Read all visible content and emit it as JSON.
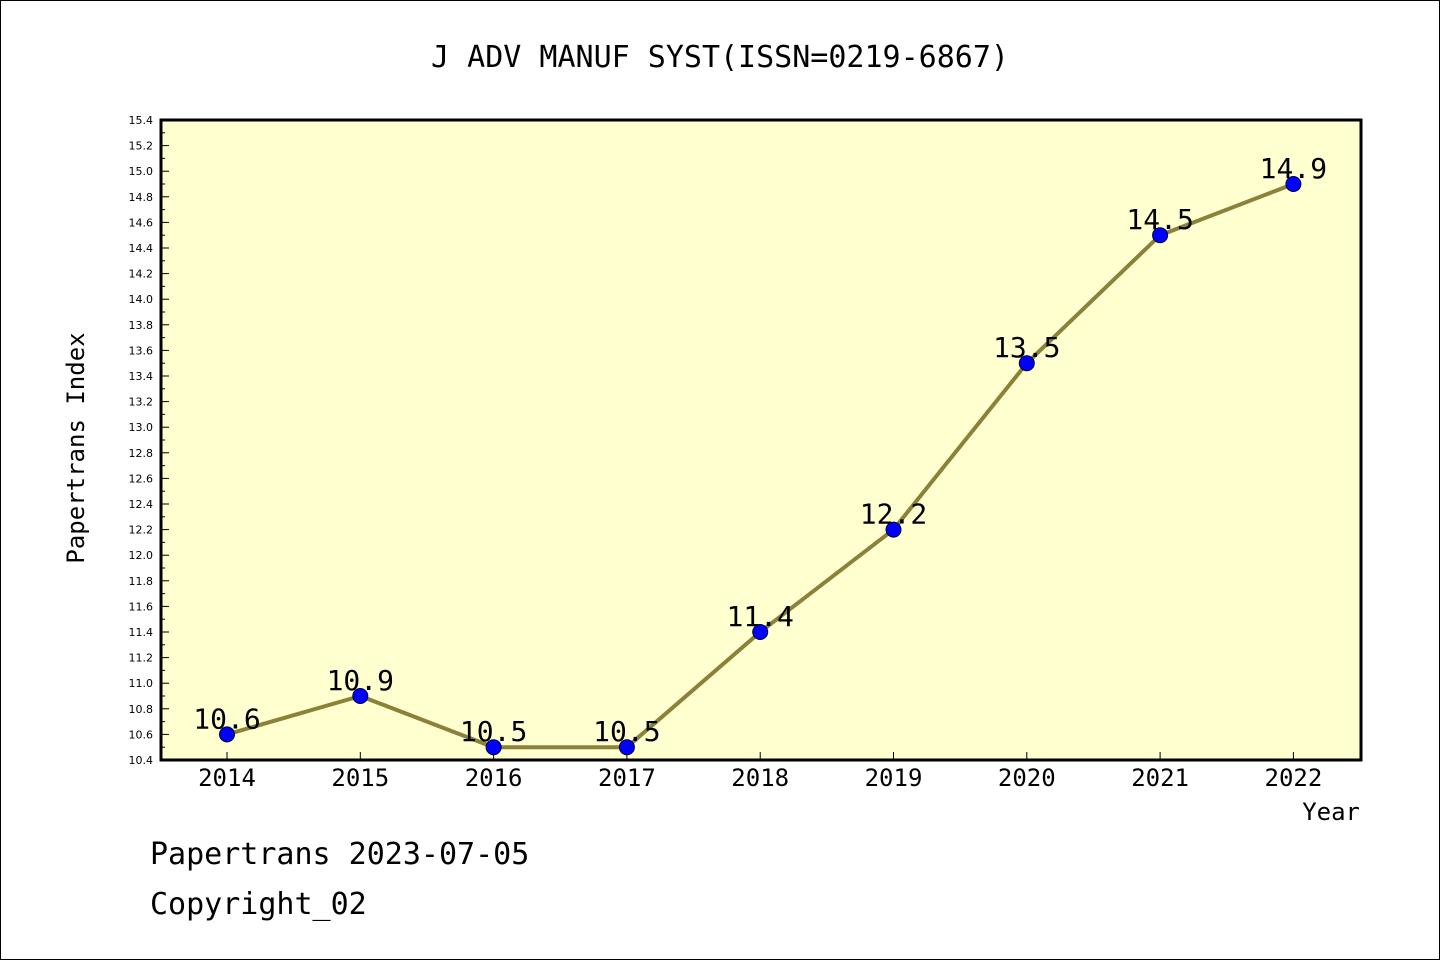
{
  "chart_data": {
    "type": "line",
    "title": "J ADV MANUF SYST(ISSN=0219-6867)",
    "xlabel": "Year",
    "ylabel": "Papertrans Index",
    "categories": [
      "2014",
      "2015",
      "2016",
      "2017",
      "2018",
      "2019",
      "2020",
      "2021",
      "2022"
    ],
    "values": [
      10.6,
      10.9,
      10.5,
      10.5,
      11.4,
      12.2,
      13.5,
      14.5,
      14.9
    ],
    "data_labels": [
      "10.6",
      "10.9",
      "10.5",
      "10.5",
      "11.4",
      "12.2",
      "13.5",
      "14.5",
      "14.9"
    ],
    "ylim": [
      10.4,
      15.4
    ],
    "y_ticks": [
      "10.4",
      "10.6",
      "10.8",
      "11.0",
      "11.2",
      "11.4",
      "11.6",
      "11.8",
      "12.0",
      "12.2",
      "12.4",
      "12.6",
      "12.8",
      "13.0",
      "13.2",
      "13.4",
      "13.6",
      "13.8",
      "14.0",
      "14.2",
      "14.4",
      "14.6",
      "14.8",
      "15.0",
      "15.2",
      "15.4"
    ],
    "grid": false,
    "colors": {
      "plot_background": "#ffffd0",
      "line": "#8b8139",
      "marker": "#0000ff"
    }
  },
  "footer": {
    "line1": "Papertrans 2023-07-05",
    "line2": "Copyright_02"
  }
}
